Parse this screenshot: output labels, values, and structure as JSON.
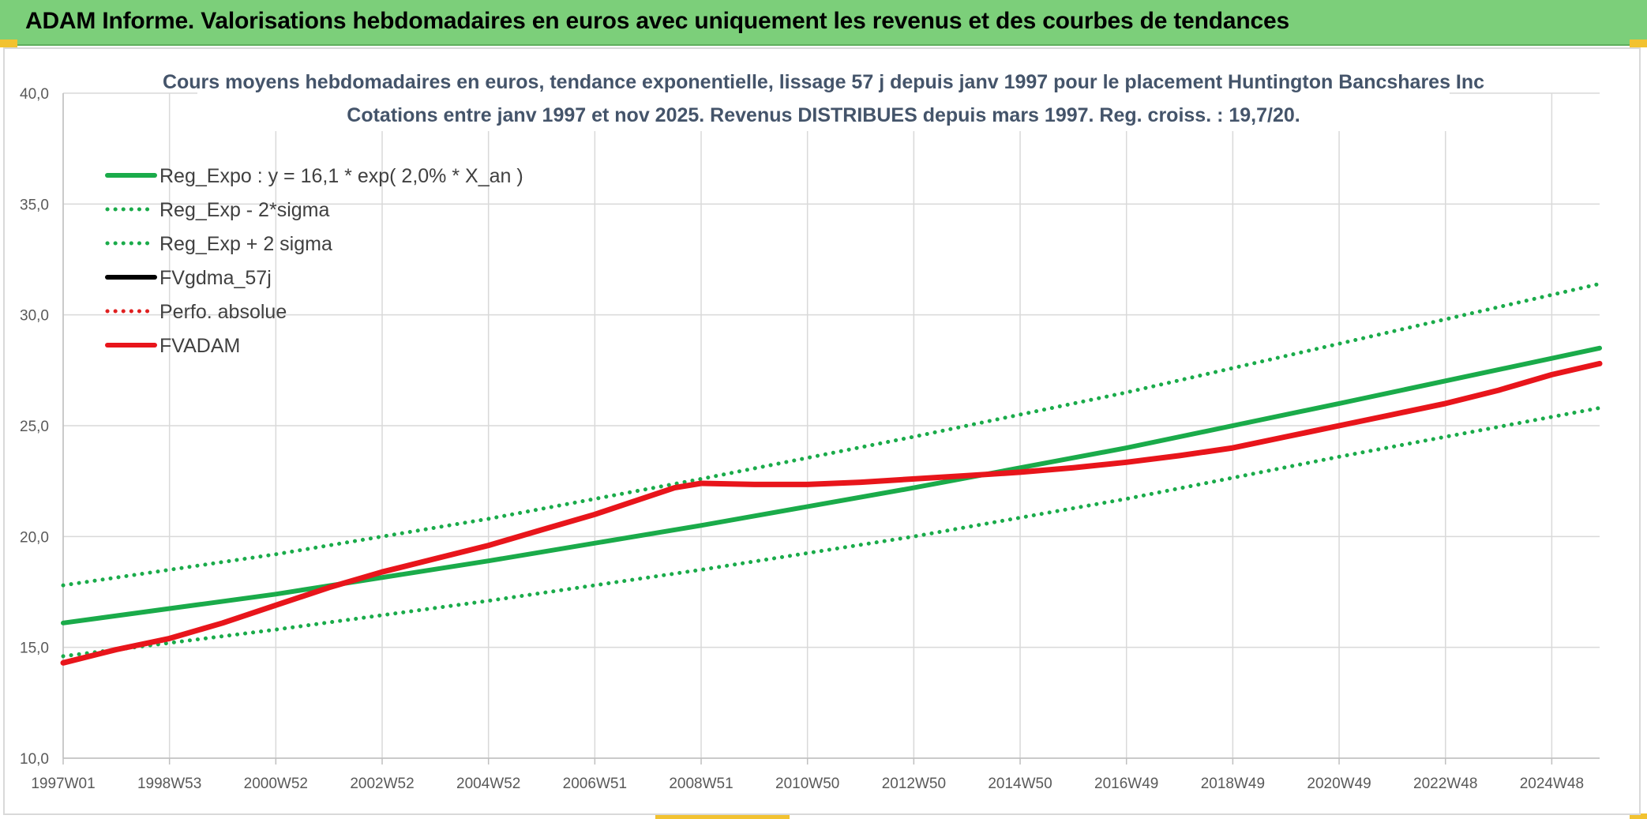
{
  "banner": {
    "title": "ADAM Informe. Valorisations hebdomadaires en euros avec uniquement les revenus et des courbes de tendances"
  },
  "chart_data": {
    "type": "line",
    "title": "Cours moyens hebdomadaires en euros, tendance exponentielle, lissage 57 j depuis janv 1997 pour le placement Huntington Bancshares Inc",
    "subtitle": "Cotations entre janv 1997 et nov 2025. Revenus DISTRIBUES depuis mars 1997. Reg. croiss. : 19,7/20.",
    "xlabel": "",
    "ylabel": "",
    "ylim": [
      10,
      40
    ],
    "yticks": [
      "10,0",
      "15,0",
      "20,0",
      "25,0",
      "30,0",
      "35,0",
      "40,0"
    ],
    "xlim": [
      1997.0,
      2025.9
    ],
    "xticks": [
      {
        "label": "1997W01",
        "x": 1997.0
      },
      {
        "label": "1998W53",
        "x": 1999.0
      },
      {
        "label": "2000W52",
        "x": 2001.0
      },
      {
        "label": "2002W52",
        "x": 2003.0
      },
      {
        "label": "2004W52",
        "x": 2005.0
      },
      {
        "label": "2006W51",
        "x": 2007.0
      },
      {
        "label": "2008W51",
        "x": 2009.0
      },
      {
        "label": "2010W50",
        "x": 2011.0
      },
      {
        "label": "2012W50",
        "x": 2013.0
      },
      {
        "label": "2014W50",
        "x": 2015.0
      },
      {
        "label": "2016W49",
        "x": 2017.0
      },
      {
        "label": "2018W49",
        "x": 2019.0
      },
      {
        "label": "2020W49",
        "x": 2021.0
      },
      {
        "label": "2022W48",
        "x": 2023.0
      },
      {
        "label": "2024W48",
        "x": 2025.0
      }
    ],
    "grid": true,
    "legend_position": "top-left",
    "series": [
      {
        "name": "Reg_Expo : y = 16,1 * exp( 2,0% *  X_an )",
        "color": "#1aab4a",
        "style": "solid",
        "x": [
          1997.0,
          2001.0,
          2005.0,
          2009.0,
          2013.0,
          2017.0,
          2021.0,
          2025.9
        ],
        "y": [
          16.1,
          17.4,
          18.9,
          20.5,
          22.2,
          24.0,
          26.0,
          28.5
        ]
      },
      {
        "name": "Reg_Exp - 2*sigma",
        "color": "#1aab4a",
        "style": "dotted",
        "x": [
          1997.0,
          2001.0,
          2005.0,
          2009.0,
          2013.0,
          2017.0,
          2021.0,
          2025.9
        ],
        "y": [
          14.6,
          15.8,
          17.1,
          18.5,
          20.0,
          21.7,
          23.6,
          25.8
        ]
      },
      {
        "name": "Reg_Exp + 2 sigma",
        "color": "#1aab4a",
        "style": "dotted",
        "x": [
          1997.0,
          2001.0,
          2005.0,
          2009.0,
          2013.0,
          2017.0,
          2021.0,
          2025.9
        ],
        "y": [
          17.8,
          19.2,
          20.8,
          22.6,
          24.5,
          26.5,
          28.7,
          31.4
        ]
      },
      {
        "name": "FVgdma_57j",
        "color": "#000000",
        "style": "solid",
        "x": [],
        "y": []
      },
      {
        "name": "Perfo. absolue",
        "color": "#e02020",
        "style": "dotted",
        "x": [],
        "y": []
      },
      {
        "name": "FVADAM",
        "color": "#e8151b",
        "style": "solid",
        "x": [
          1997.0,
          1998.0,
          1999.0,
          2000.0,
          2001.0,
          2002.0,
          2003.0,
          2004.0,
          2005.0,
          2006.0,
          2007.0,
          2008.0,
          2008.5,
          2009.0,
          2010.0,
          2011.0,
          2012.0,
          2013.0,
          2014.0,
          2015.0,
          2016.0,
          2017.0,
          2018.0,
          2019.0,
          2020.0,
          2021.0,
          2022.0,
          2023.0,
          2024.0,
          2025.0,
          2025.9
        ],
        "y": [
          14.3,
          14.9,
          15.4,
          16.1,
          16.9,
          17.7,
          18.4,
          19.0,
          19.6,
          20.3,
          21.0,
          21.8,
          22.2,
          22.4,
          22.35,
          22.35,
          22.45,
          22.6,
          22.75,
          22.9,
          23.1,
          23.35,
          23.65,
          24.0,
          24.5,
          25.0,
          25.5,
          26.0,
          26.6,
          27.3,
          27.8
        ]
      }
    ]
  }
}
